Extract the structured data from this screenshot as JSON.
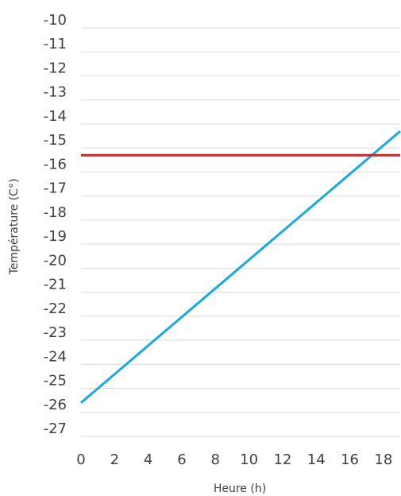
{
  "chart_data": {
    "type": "line",
    "title": "",
    "xlabel": "Heure (h)",
    "ylabel": "Température (C°)",
    "xlim": [
      0,
      19
    ],
    "ylim": [
      -27,
      -10
    ],
    "x_ticks": [
      0,
      2,
      4,
      6,
      8,
      10,
      12,
      14,
      16,
      18
    ],
    "y_ticks": [
      -10,
      -11,
      -12,
      -13,
      -14,
      -15,
      -16,
      -17,
      -18,
      -19,
      -20,
      -21,
      -22,
      -23,
      -24,
      -25,
      -26,
      -27
    ],
    "grid": "horizontal",
    "legend": "none",
    "series": [
      {
        "color": "#17a9e3",
        "x": [
          0,
          19
        ],
        "y": [
          -25.6,
          -14.3
        ]
      },
      {
        "color": "#c0282d",
        "x": [
          0,
          19
        ],
        "y": [
          -15.3,
          -15.3
        ]
      }
    ]
  }
}
